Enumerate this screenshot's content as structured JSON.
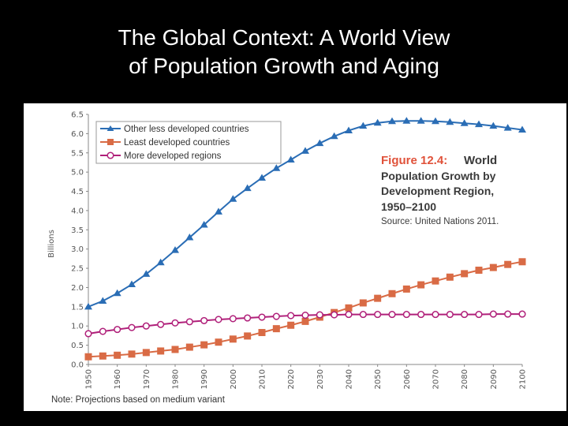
{
  "slide": {
    "title_line1": "The Global Context: A World View",
    "title_line2": "of Population Growth and Aging"
  },
  "figure": {
    "label": "Figure 12.4:",
    "title_word": "World",
    "subtitle_line1": "Population Growth by",
    "subtitle_line2": "Development Region,",
    "subtitle_line3": "1950–2100",
    "source": "Source: United Nations 2011.",
    "note": "Note: Projections based on medium variant"
  },
  "colors": {
    "other_less": "#2a6db5",
    "least": "#d96b45",
    "more": "#b0207a",
    "figure_label": "#e0523a",
    "figure_text": "#3a3a3a"
  },
  "chart_data": {
    "type": "line",
    "title": "Figure 12.4: World Population Growth by Development Region, 1950–2100",
    "xlabel": "",
    "ylabel": "Billions",
    "xlim": [
      1950,
      2100
    ],
    "ylim": [
      0,
      6.5
    ],
    "yticks": [
      "0.0",
      "0.5",
      "1.0",
      "1.5",
      "2.0",
      "2.5",
      "3.0",
      "3.5",
      "4.0",
      "4.5",
      "5.0",
      "5.5",
      "6.0",
      "6.5"
    ],
    "xticks": [
      "1950",
      "1960",
      "1970",
      "1980",
      "1990",
      "2000",
      "2010",
      "2020",
      "2030",
      "2040",
      "2050",
      "2060",
      "2070",
      "2080",
      "2090",
      "2100"
    ],
    "x": [
      1950,
      1955,
      1960,
      1965,
      1970,
      1975,
      1980,
      1985,
      1990,
      1995,
      2000,
      2005,
      2010,
      2015,
      2020,
      2025,
      2030,
      2035,
      2040,
      2045,
      2050,
      2055,
      2060,
      2065,
      2070,
      2075,
      2080,
      2085,
      2090,
      2095,
      2100
    ],
    "series": [
      {
        "name": "Other less developed countries",
        "marker": "triangle",
        "values": [
          1.5,
          1.65,
          1.85,
          2.08,
          2.35,
          2.65,
          2.97,
          3.3,
          3.63,
          3.97,
          4.3,
          4.58,
          4.85,
          5.1,
          5.32,
          5.55,
          5.75,
          5.93,
          6.08,
          6.2,
          6.28,
          6.32,
          6.33,
          6.33,
          6.32,
          6.3,
          6.27,
          6.24,
          6.2,
          6.15,
          6.1
        ]
      },
      {
        "name": "Least developed countries",
        "marker": "square",
        "values": [
          0.2,
          0.22,
          0.24,
          0.27,
          0.31,
          0.35,
          0.39,
          0.45,
          0.51,
          0.58,
          0.66,
          0.74,
          0.83,
          0.93,
          1.02,
          1.12,
          1.23,
          1.35,
          1.47,
          1.6,
          1.72,
          1.84,
          1.96,
          2.07,
          2.17,
          2.27,
          2.36,
          2.45,
          2.52,
          2.6,
          2.67
        ]
      },
      {
        "name": "More developed regions",
        "marker": "circle",
        "values": [
          0.8,
          0.86,
          0.91,
          0.96,
          1.0,
          1.04,
          1.08,
          1.11,
          1.14,
          1.17,
          1.19,
          1.21,
          1.23,
          1.25,
          1.27,
          1.28,
          1.29,
          1.29,
          1.3,
          1.3,
          1.3,
          1.3,
          1.3,
          1.3,
          1.3,
          1.3,
          1.3,
          1.3,
          1.31,
          1.31,
          1.31
        ]
      }
    ],
    "legend_position": "top-left"
  }
}
